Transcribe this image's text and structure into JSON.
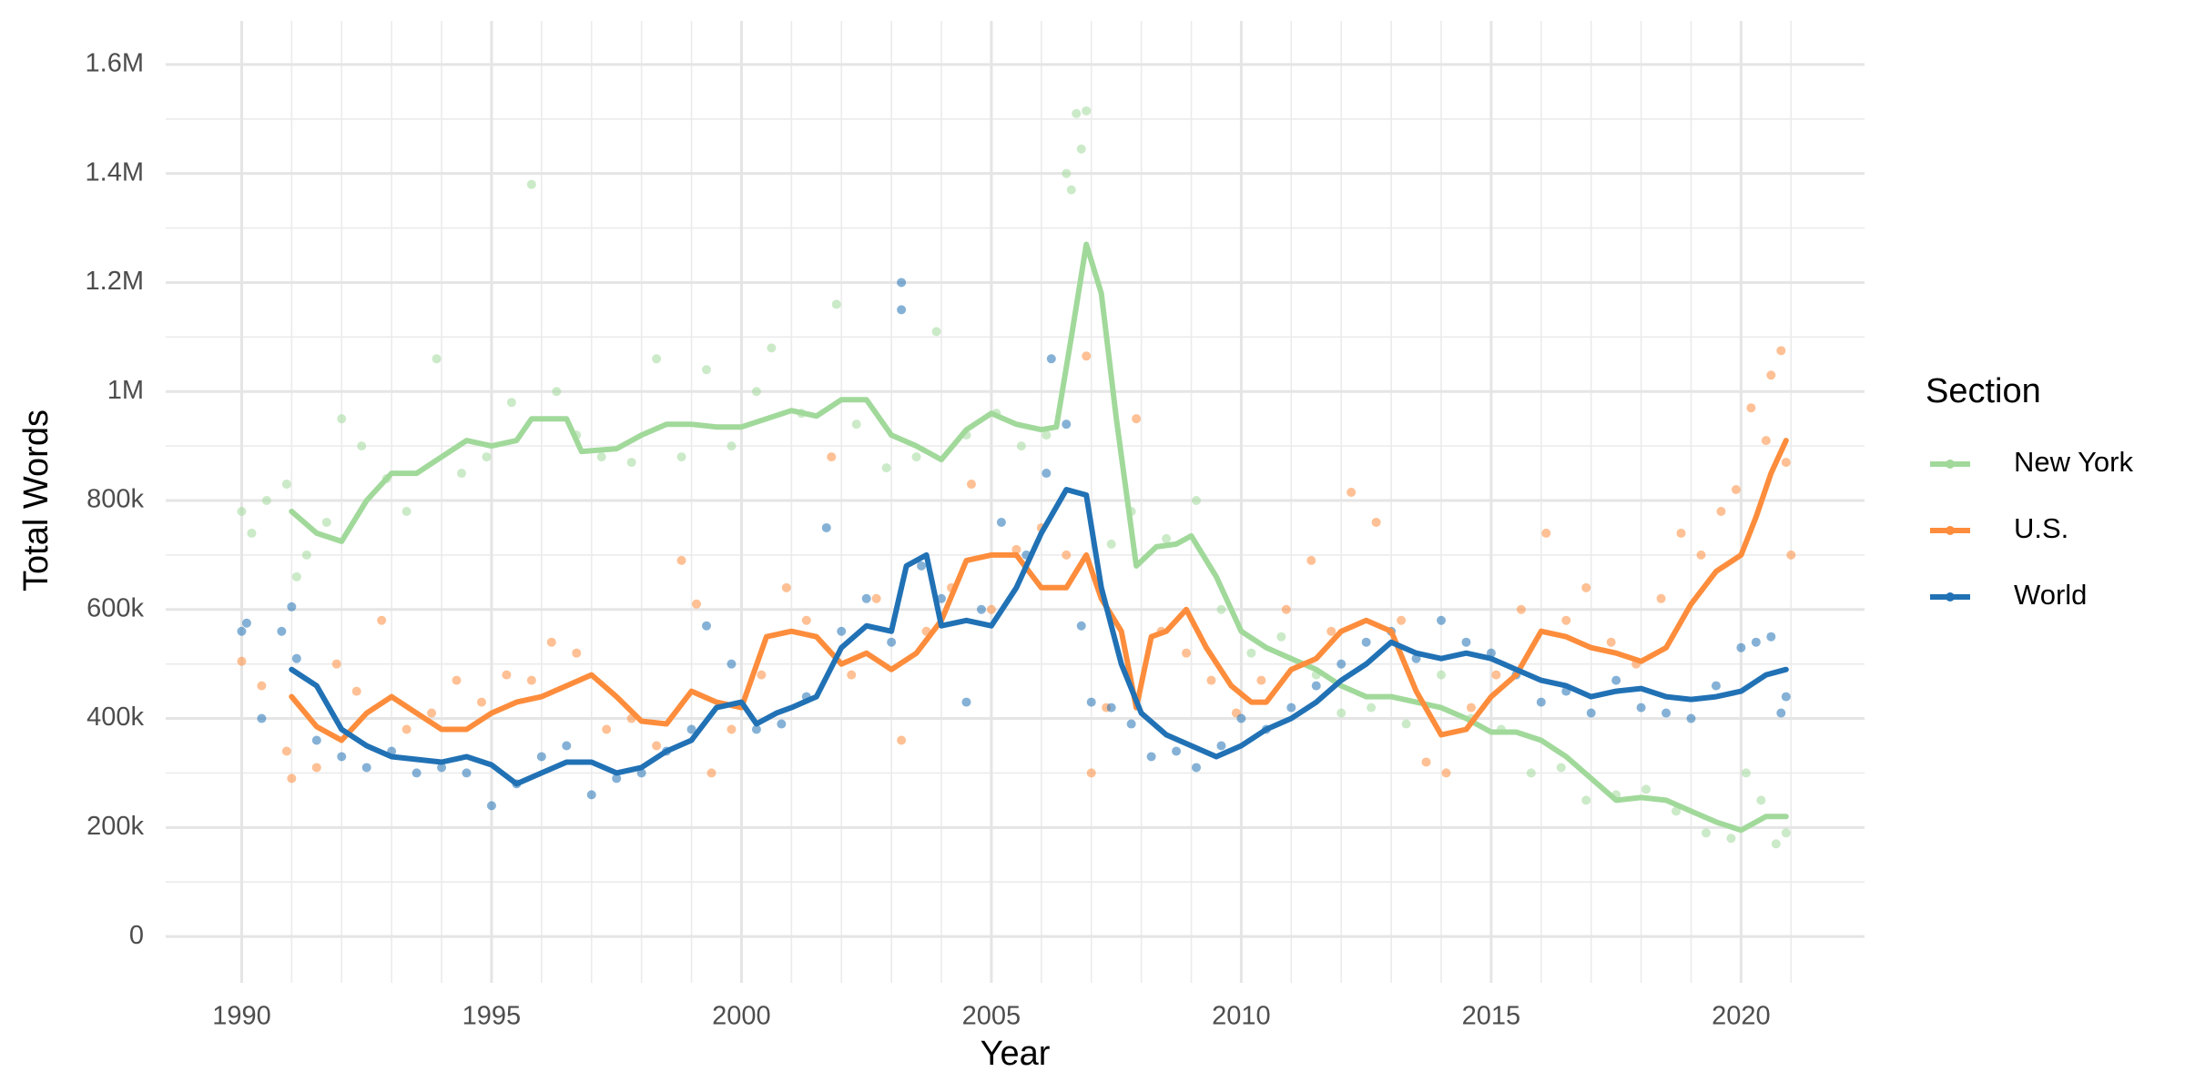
{
  "chart_data": {
    "type": "line",
    "x_label": "Year",
    "y_label": "Total Words",
    "legend_title": "Section",
    "legend_position": "right",
    "grid": true,
    "xlim": [
      1988.48,
      2022.47
    ],
    "ylim": [
      -85000,
      1680000
    ],
    "xticks": [
      1990,
      1995,
      2000,
      2005,
      2010,
      2015,
      2020
    ],
    "xminor": [
      1991,
      1992,
      1993,
      1994,
      1996,
      1997,
      1998,
      1999,
      2001,
      2002,
      2003,
      2004,
      2006,
      2007,
      2008,
      2009,
      2011,
      2012,
      2013,
      2014,
      2016,
      2017,
      2018,
      2019,
      2021
    ],
    "yticks": [
      0,
      {
        "value": 200000,
        "label": "200k"
      },
      {
        "value": 400000,
        "label": "400k"
      },
      {
        "value": 600000,
        "label": "600k"
      },
      {
        "value": 800000,
        "label": "800k"
      },
      {
        "value": 1000000,
        "label": "1M"
      },
      {
        "value": 1200000,
        "label": "1.2M"
      },
      {
        "value": 1400000,
        "label": "1.4M"
      },
      {
        "value": 1600000,
        "label": "1.6M"
      }
    ],
    "yminor": [
      100000,
      300000,
      500000,
      700000,
      900000,
      1100000,
      1300000,
      1500000
    ],
    "series": [
      {
        "name": "New York",
        "color": "#a1d99b",
        "x": [
          1991.0,
          1991.5,
          1992.0,
          1992.5,
          1993.0,
          1993.5,
          1994.0,
          1994.5,
          1995.0,
          1995.5,
          1995.8,
          1996.5,
          1996.8,
          1997.5,
          1998.0,
          1998.5,
          1999.0,
          1999.5,
          2000.0,
          2000.5,
          2001.0,
          2001.5,
          2002.0,
          2002.5,
          2003.0,
          2003.5,
          2004.0,
          2004.5,
          2005.0,
          2005.5,
          2006.0,
          2006.3,
          2006.6,
          2006.9,
          2007.2,
          2007.5,
          2007.9,
          2008.3,
          2008.7,
          2009.0,
          2009.5,
          2010.0,
          2010.5,
          2011.0,
          2011.5,
          2012.0,
          2012.5,
          2013.0,
          2013.5,
          2014.0,
          2014.5,
          2015.0,
          2015.5,
          2016.0,
          2016.5,
          2017.0,
          2017.5,
          2018.0,
          2018.5,
          2019.0,
          2019.5,
          2020.0,
          2020.5,
          2020.9
        ],
        "values": [
          780000,
          740000,
          725000,
          800000,
          850000,
          850000,
          880000,
          910000,
          900000,
          910000,
          950000,
          950000,
          890000,
          895000,
          920000,
          940000,
          940000,
          935000,
          935000,
          950000,
          965000,
          955000,
          985000,
          985000,
          920000,
          900000,
          875000,
          930000,
          960000,
          940000,
          930000,
          935000,
          1100000,
          1270000,
          1180000,
          950000,
          680000,
          715000,
          720000,
          735000,
          660000,
          560000,
          530000,
          510000,
          490000,
          460000,
          440000,
          440000,
          430000,
          420000,
          400000,
          375000,
          375000,
          360000,
          330000,
          290000,
          250000,
          255000,
          250000,
          230000,
          210000,
          195000,
          220000,
          220000
        ],
        "points": {
          "x": [
            1990.0,
            1990.2,
            1990.5,
            1990.9,
            1991.1,
            1991.3,
            1991.7,
            1992.0,
            1992.4,
            1992.9,
            1993.3,
            1993.9,
            1994.4,
            1994.9,
            1995.4,
            1995.8,
            1996.3,
            1996.7,
            1997.2,
            1997.8,
            1998.3,
            1998.8,
            1999.3,
            1999.8,
            2000.3,
            2000.6,
            2001.2,
            2001.9,
            2002.3,
            2002.9,
            2003.5,
            2003.9,
            2004.5,
            2005.1,
            2005.6,
            2006.1,
            2006.5,
            2006.6,
            2006.7,
            2006.8,
            2006.9,
            2007.4,
            2007.8,
            2008.5,
            2009.1,
            2009.6,
            2010.2,
            2010.8,
            2011.5,
            2012.0,
            2012.6,
            2013.3,
            2014.0,
            2014.6,
            2015.2,
            2015.8,
            2016.4,
            2016.9,
            2017.5,
            2018.1,
            2018.7,
            2019.3,
            2019.8,
            2020.1,
            2020.4,
            2020.7,
            2020.9
          ],
          "values": [
            780000,
            740000,
            800000,
            830000,
            660000,
            700000,
            760000,
            950000,
            900000,
            840000,
            780000,
            1060000,
            850000,
            880000,
            980000,
            1380000,
            1000000,
            920000,
            880000,
            870000,
            1060000,
            880000,
            1040000,
            900000,
            1000000,
            1080000,
            960000,
            1160000,
            940000,
            860000,
            880000,
            1110000,
            920000,
            960000,
            900000,
            920000,
            1400000,
            1370000,
            1510000,
            1445000,
            1515000,
            720000,
            780000,
            730000,
            800000,
            600000,
            520000,
            550000,
            480000,
            410000,
            420000,
            390000,
            480000,
            400000,
            380000,
            300000,
            310000,
            250000,
            260000,
            270000,
            230000,
            190000,
            180000,
            300000,
            250000,
            170000,
            190000
          ]
        }
      },
      {
        "name": "U.S.",
        "color": "#fd8d3c",
        "x": [
          1991.0,
          1991.5,
          1992.0,
          1992.5,
          1993.0,
          1993.5,
          1994.0,
          1994.5,
          1995.0,
          1995.5,
          1996.0,
          1996.5,
          1997.0,
          1997.5,
          1998.0,
          1998.5,
          1999.0,
          1999.5,
          2000.0,
          2000.5,
          2001.0,
          2001.5,
          2002.0,
          2002.5,
          2003.0,
          2003.5,
          2004.0,
          2004.5,
          2005.0,
          2005.5,
          2006.0,
          2006.5,
          2006.9,
          2007.2,
          2007.6,
          2007.9,
          2008.2,
          2008.5,
          2008.9,
          2009.3,
          2009.8,
          2010.2,
          2010.5,
          2011.0,
          2011.5,
          2012.0,
          2012.5,
          2013.0,
          2013.5,
          2014.0,
          2014.5,
          2015.0,
          2015.5,
          2016.0,
          2016.5,
          2017.0,
          2017.5,
          2018.0,
          2018.5,
          2019.0,
          2019.5,
          2020.0,
          2020.3,
          2020.6,
          2020.9
        ],
        "values": [
          440000,
          385000,
          360000,
          410000,
          440000,
          410000,
          380000,
          380000,
          410000,
          430000,
          440000,
          460000,
          480000,
          440000,
          395000,
          390000,
          450000,
          430000,
          420000,
          550000,
          560000,
          550000,
          500000,
          520000,
          490000,
          520000,
          580000,
          690000,
          700000,
          700000,
          640000,
          640000,
          700000,
          620000,
          560000,
          420000,
          550000,
          560000,
          600000,
          530000,
          460000,
          430000,
          430000,
          490000,
          510000,
          560000,
          580000,
          560000,
          450000,
          370000,
          380000,
          440000,
          480000,
          560000,
          550000,
          530000,
          520000,
          505000,
          530000,
          610000,
          670000,
          700000,
          770000,
          850000,
          910000
        ],
        "points": {
          "x": [
            1990.0,
            1990.4,
            1990.9,
            1991.0,
            1991.5,
            1991.9,
            1992.3,
            1992.8,
            1993.3,
            1993.8,
            1994.3,
            1994.8,
            1995.3,
            1995.8,
            1996.2,
            1996.7,
            1997.3,
            1997.8,
            1998.3,
            1998.8,
            1999.1,
            1999.4,
            1999.8,
            2000.4,
            2000.9,
            2001.3,
            2001.8,
            2002.2,
            2002.7,
            2003.2,
            2003.7,
            2004.2,
            2004.6,
            2005.0,
            2005.5,
            2006.0,
            2006.5,
            2006.9,
            2007.0,
            2007.3,
            2007.9,
            2008.4,
            2008.9,
            2009.4,
            2009.9,
            2010.4,
            2010.9,
            2011.4,
            2011.8,
            2012.2,
            2012.7,
            2013.2,
            2013.7,
            2014.1,
            2014.6,
            2015.1,
            2015.6,
            2016.1,
            2016.5,
            2016.9,
            2017.4,
            2017.9,
            2018.4,
            2018.8,
            2019.2,
            2019.6,
            2019.9,
            2020.2,
            2020.5,
            2020.6,
            2020.8,
            2020.9,
            2021.0
          ],
          "values": [
            505000,
            460000,
            340000,
            290000,
            310000,
            500000,
            450000,
            580000,
            380000,
            410000,
            470000,
            430000,
            480000,
            470000,
            540000,
            520000,
            380000,
            400000,
            350000,
            690000,
            610000,
            300000,
            380000,
            480000,
            640000,
            580000,
            880000,
            480000,
            620000,
            360000,
            560000,
            640000,
            830000,
            600000,
            710000,
            750000,
            700000,
            1065000,
            300000,
            420000,
            950000,
            560000,
            520000,
            470000,
            410000,
            470000,
            600000,
            690000,
            560000,
            815000,
            760000,
            580000,
            320000,
            300000,
            420000,
            480000,
            600000,
            740000,
            580000,
            640000,
            540000,
            500000,
            620000,
            740000,
            700000,
            780000,
            820000,
            970000,
            910000,
            1030000,
            1075000,
            870000,
            700000
          ]
        }
      },
      {
        "name": "World",
        "color": "#2171b5",
        "x": [
          1991.0,
          1991.5,
          1992.0,
          1992.5,
          1993.0,
          1993.5,
          1994.0,
          1994.5,
          1995.0,
          1995.5,
          1996.0,
          1996.5,
          1997.0,
          1997.5,
          1998.0,
          1998.5,
          1999.0,
          1999.5,
          2000.0,
          2000.3,
          2000.7,
          2001.0,
          2001.5,
          2002.0,
          2002.5,
          2003.0,
          2003.3,
          2003.7,
          2004.0,
          2004.5,
          2005.0,
          2005.5,
          2006.0,
          2006.5,
          2006.9,
          2007.2,
          2007.6,
          2008.0,
          2008.5,
          2009.0,
          2009.5,
          2010.0,
          2010.5,
          2011.0,
          2011.5,
          2012.0,
          2012.5,
          2013.0,
          2013.5,
          2014.0,
          2014.5,
          2015.0,
          2015.5,
          2016.0,
          2016.5,
          2017.0,
          2017.5,
          2018.0,
          2018.5,
          2019.0,
          2019.5,
          2020.0,
          2020.5,
          2020.9
        ],
        "values": [
          490000,
          460000,
          380000,
          350000,
          330000,
          325000,
          320000,
          330000,
          315000,
          280000,
          300000,
          320000,
          320000,
          300000,
          310000,
          340000,
          360000,
          420000,
          430000,
          390000,
          410000,
          420000,
          440000,
          530000,
          570000,
          560000,
          680000,
          700000,
          570000,
          580000,
          570000,
          640000,
          740000,
          820000,
          810000,
          640000,
          500000,
          410000,
          370000,
          350000,
          330000,
          350000,
          380000,
          400000,
          430000,
          470000,
          500000,
          540000,
          520000,
          510000,
          520000,
          510000,
          490000,
          470000,
          460000,
          440000,
          450000,
          455000,
          440000,
          435000,
          440000,
          450000,
          480000,
          490000
        ],
        "points": {
          "x": [
            1990.0,
            1990.1,
            1990.4,
            1990.8,
            1991.0,
            1991.1,
            1991.5,
            1992.0,
            1992.5,
            1993.0,
            1993.5,
            1994.0,
            1994.5,
            1995.0,
            1995.5,
            1996.0,
            1996.5,
            1997.0,
            1997.5,
            1998.0,
            1998.5,
            1999.0,
            1999.3,
            1999.8,
            2000.3,
            2000.8,
            2001.3,
            2001.7,
            2002.0,
            2002.5,
            2003.0,
            2003.2,
            2003.2,
            2003.6,
            2004.0,
            2004.5,
            2004.8,
            2005.2,
            2005.7,
            2006.1,
            2006.2,
            2006.5,
            2006.8,
            2007.0,
            2007.4,
            2007.8,
            2008.2,
            2008.7,
            2009.1,
            2009.6,
            2010.0,
            2010.5,
            2011.0,
            2011.5,
            2012.0,
            2012.5,
            2013.0,
            2013.5,
            2014.0,
            2014.5,
            2015.0,
            2015.5,
            2016.0,
            2016.5,
            2017.0,
            2017.5,
            2018.0,
            2018.5,
            2019.0,
            2019.5,
            2020.0,
            2020.3,
            2020.6,
            2020.8,
            2020.9
          ],
          "values": [
            560000,
            575000,
            400000,
            560000,
            605000,
            510000,
            360000,
            330000,
            310000,
            340000,
            300000,
            310000,
            300000,
            240000,
            280000,
            330000,
            350000,
            260000,
            290000,
            300000,
            340000,
            380000,
            570000,
            500000,
            380000,
            390000,
            440000,
            750000,
            560000,
            620000,
            540000,
            1200000,
            1150000,
            680000,
            620000,
            430000,
            600000,
            760000,
            700000,
            850000,
            1060000,
            940000,
            570000,
            430000,
            420000,
            390000,
            330000,
            340000,
            310000,
            350000,
            400000,
            380000,
            420000,
            460000,
            500000,
            540000,
            560000,
            510000,
            580000,
            540000,
            520000,
            480000,
            430000,
            450000,
            410000,
            470000,
            420000,
            410000,
            400000,
            460000,
            530000,
            540000,
            550000,
            410000,
            440000
          ]
        }
      }
    ]
  }
}
